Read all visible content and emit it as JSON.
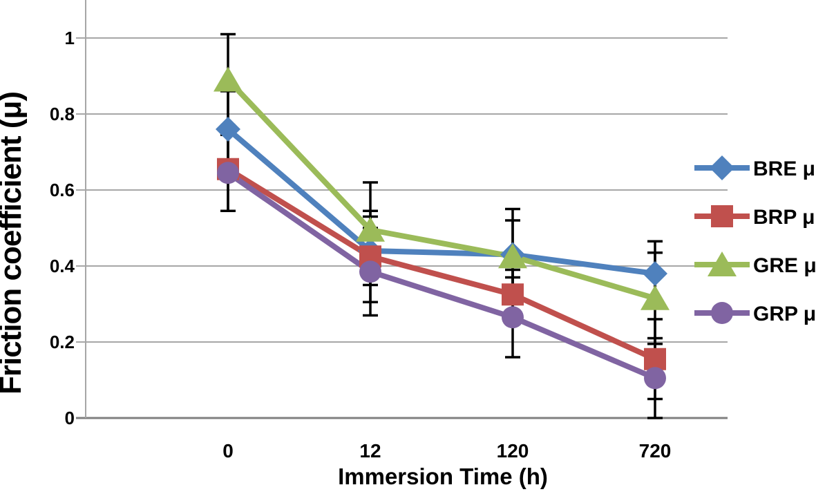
{
  "chart_data": {
    "type": "line",
    "title": "",
    "xlabel": "Immersion Time (h)",
    "ylabel": "Friction coefficient (μ)",
    "categories": [
      "0",
      "12",
      "120",
      "720"
    ],
    "yticks": [
      0,
      0.2,
      0.4,
      0.6,
      0.8,
      1
    ],
    "ytick_labels": [
      "0",
      "0.2",
      "0.4",
      "0.6",
      "0.8",
      "1"
    ],
    "ylim": [
      0,
      1.1
    ],
    "grid": "horizontal-major",
    "legend_position": "right-middle",
    "error_bars": true,
    "series": [
      {
        "name": "BRE μ",
        "marker": "diamond",
        "color": "#4F81BD",
        "values": [
          0.76,
          0.44,
          0.43,
          0.38
        ],
        "error": [
          0.1,
          0.09,
          0.12,
          0.085
        ]
      },
      {
        "name": "BRP μ",
        "marker": "square",
        "color": "#C0504D",
        "values": [
          0.655,
          0.425,
          0.325,
          0.155
        ],
        "error": [
          0.11,
          0.12,
          0.065,
          0.105
        ]
      },
      {
        "name": "GRE μ",
        "marker": "triangle",
        "color": "#9BBB59",
        "values": [
          0.89,
          0.495,
          0.425,
          0.315
        ],
        "error": [
          0.12,
          0.125,
          0.095,
          0.12
        ]
      },
      {
        "name": "GRP μ",
        "marker": "circle",
        "color": "#8064A2",
        "values": [
          0.645,
          0.385,
          0.265,
          0.105
        ],
        "error": [
          0.1,
          0.115,
          0.105,
          0.105
        ]
      }
    ],
    "colors": {
      "gridline": "#A6A6A6",
      "axis_line": "#7F7F7F",
      "error_bar": "#000000",
      "text": "#000000",
      "background": "#FFFFFF"
    }
  }
}
